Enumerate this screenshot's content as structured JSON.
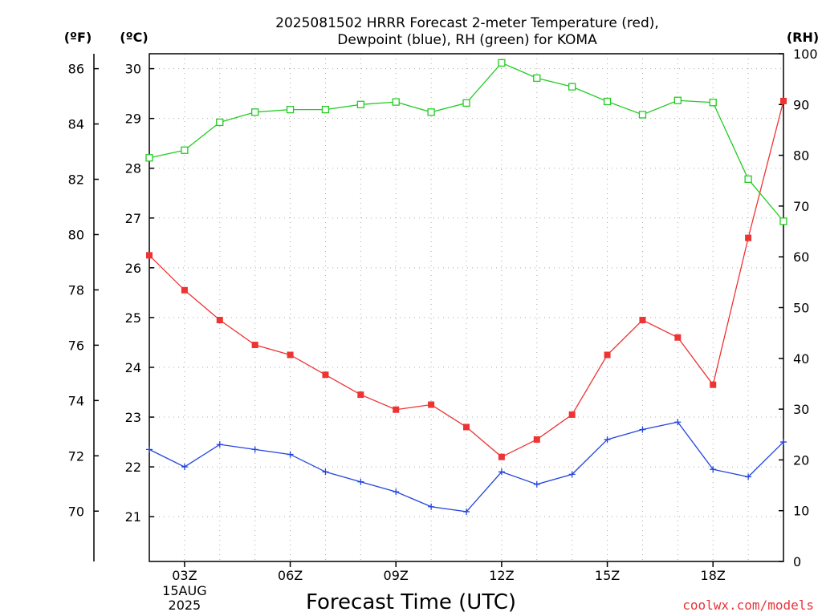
{
  "chart_data": {
    "type": "line",
    "title_lines": [
      "2025081502 HRRR Forecast 2-meter Temperature (red),",
      "Dewpoint (blue), RH (green) for KOMA"
    ],
    "xlabel": "Forecast Time (UTC)",
    "credit": "coolwx.com/models",
    "units": {
      "fahrenheit": "(ºF)",
      "celsius": "(ºC)",
      "rh": "(RH)"
    },
    "x_hours": [
      2,
      3,
      4,
      5,
      6,
      7,
      8,
      9,
      10,
      11,
      12,
      13,
      14,
      15,
      16,
      17,
      18,
      19,
      20
    ],
    "x_range": [
      2,
      20
    ],
    "x_ticks": [
      {
        "hour": 3,
        "label": "03Z",
        "extra": [
          "15AUG",
          "2025"
        ]
      },
      {
        "hour": 6,
        "label": "06Z",
        "extra": []
      },
      {
        "hour": 9,
        "label": "09Z",
        "extra": []
      },
      {
        "hour": 12,
        "label": "12Z",
        "extra": []
      },
      {
        "hour": 15,
        "label": "15Z",
        "extra": []
      },
      {
        "hour": 18,
        "label": "18Z",
        "extra": []
      }
    ],
    "celsius_range": [
      20.1,
      30.3
    ],
    "celsius_ticks": [
      "21",
      "22",
      "23",
      "24",
      "25",
      "26",
      "27",
      "28",
      "29",
      "30"
    ],
    "fahrenheit_ticks": [
      "70",
      "72",
      "74",
      "76",
      "78",
      "80",
      "82",
      "84",
      "86"
    ],
    "rh_range": [
      0,
      100
    ],
    "rh_ticks": [
      "0",
      "10",
      "20",
      "30",
      "40",
      "50",
      "60",
      "70",
      "80",
      "90",
      "100"
    ],
    "grid": true,
    "series": [
      {
        "name": "Temperature",
        "axis": "celsius",
        "color": "#ee3333",
        "marker": "filled-square",
        "values": [
          26.25,
          25.55,
          24.95,
          24.45,
          24.25,
          23.85,
          23.45,
          23.15,
          23.25,
          22.8,
          22.2,
          22.55,
          23.05,
          24.25,
          24.95,
          24.6,
          23.65,
          26.6,
          29.35
        ]
      },
      {
        "name": "Dewpoint",
        "axis": "celsius",
        "color": "#2244dd",
        "marker": "plus",
        "values": [
          22.35,
          22.0,
          22.45,
          22.35,
          22.25,
          21.9,
          21.7,
          21.5,
          21.2,
          21.1,
          21.9,
          21.65,
          21.85,
          22.55,
          22.75,
          22.9,
          21.95,
          21.8,
          22.5
        ]
      },
      {
        "name": "RH",
        "axis": "rh",
        "color": "#22cc22",
        "marker": "open-square",
        "values": [
          79.5,
          81,
          86.5,
          88.5,
          89,
          89,
          90,
          90.5,
          88.5,
          90.3,
          98.2,
          95.2,
          93.5,
          90.6,
          88,
          90.8,
          90.4,
          75.3,
          67
        ]
      }
    ]
  }
}
